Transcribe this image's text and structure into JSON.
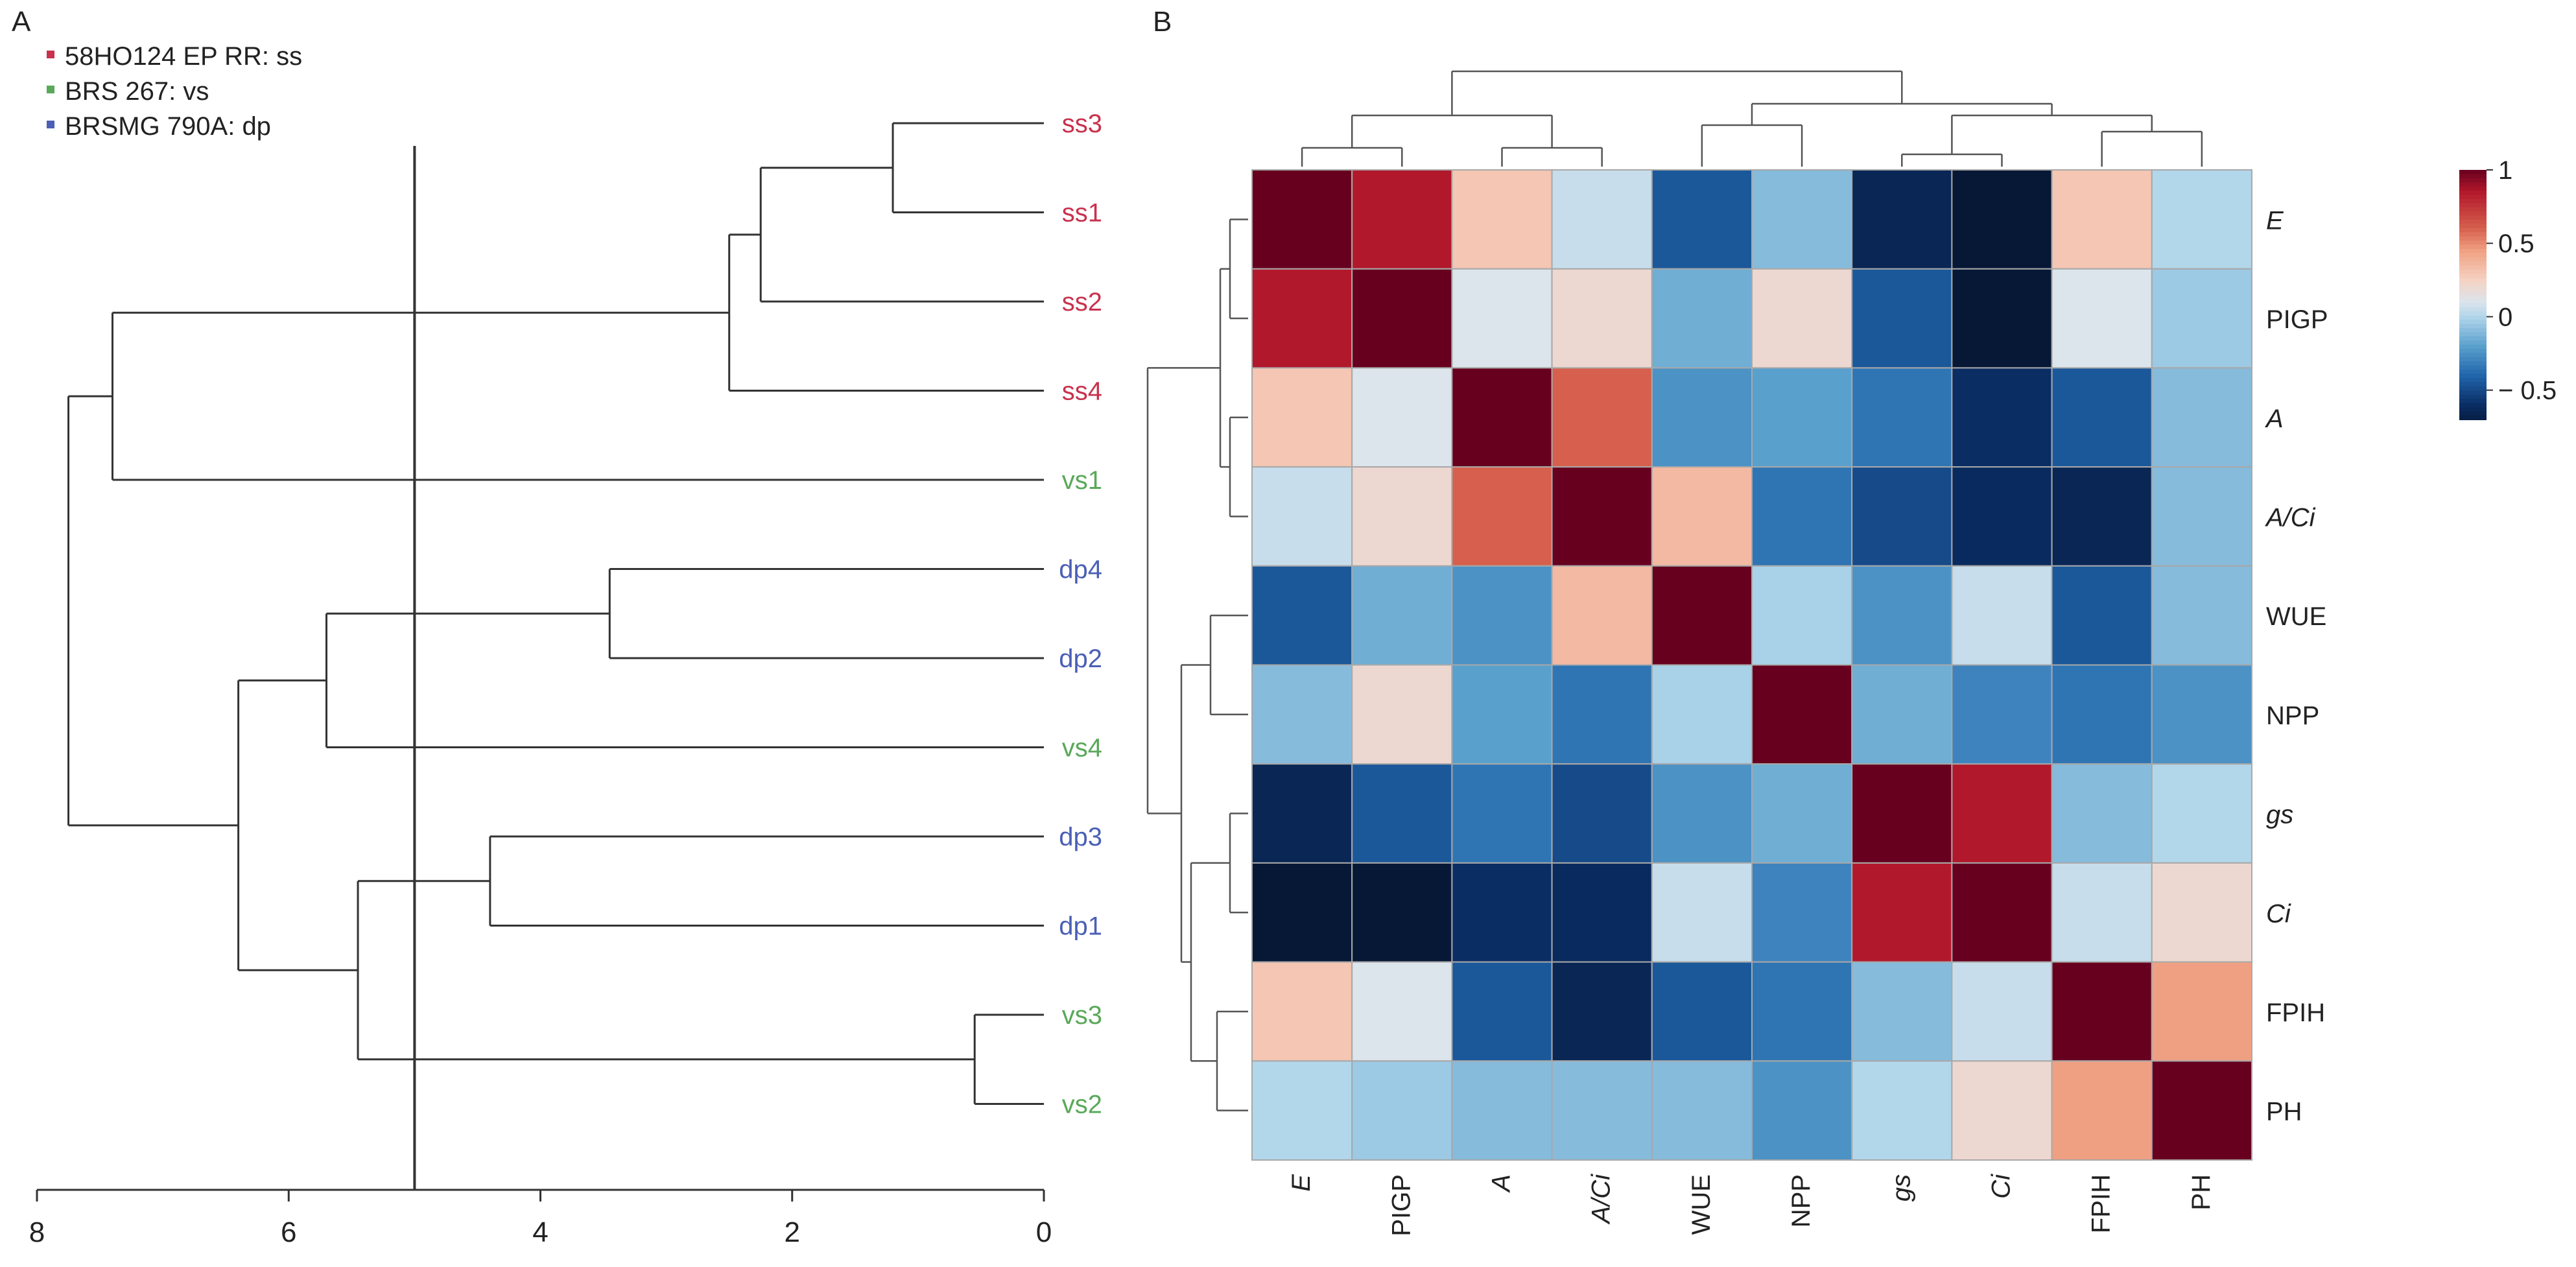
{
  "chart_data": [
    {
      "type": "dendrogram",
      "panel_label": "A",
      "orientation": "horizontal",
      "legend": [
        {
          "label": "58HO124 EP RR: ss",
          "color": "#c8324d"
        },
        {
          "label": "BRS 267: vs",
          "color": "#5aa85a"
        },
        {
          "label": "BRSMG 790A: dp",
          "color": "#4a5fb5"
        }
      ],
      "leaves": [
        {
          "label": "ss3",
          "group": "ss"
        },
        {
          "label": "ss1",
          "group": "ss"
        },
        {
          "label": "ss2",
          "group": "ss"
        },
        {
          "label": "ss4",
          "group": "ss"
        },
        {
          "label": "vs1",
          "group": "vs"
        },
        {
          "label": "dp4",
          "group": "dp"
        },
        {
          "label": "dp2",
          "group": "dp"
        },
        {
          "label": "vs4",
          "group": "vs"
        },
        {
          "label": "dp3",
          "group": "dp"
        },
        {
          "label": "dp1",
          "group": "dp"
        },
        {
          "label": "vs3",
          "group": "vs"
        },
        {
          "label": "vs2",
          "group": "vs"
        }
      ],
      "merges": [
        {
          "children": [
            "ss3",
            "ss1"
          ],
          "height": 1.2
        },
        {
          "children": [
            "(ss3,ss1)",
            "ss2"
          ],
          "height": 2.25
        },
        {
          "children": [
            "(ss3,ss1,ss2)",
            "ss4"
          ],
          "height": 2.5
        },
        {
          "children": [
            "(ss)",
            "vs1"
          ],
          "height": 7.4
        },
        {
          "children": [
            "dp4",
            "dp2"
          ],
          "height": 3.45
        },
        {
          "children": [
            "(dp4,dp2)",
            "vs4"
          ],
          "height": 5.7
        },
        {
          "children": [
            "dp3",
            "dp1"
          ],
          "height": 4.4
        },
        {
          "children": [
            "vs3",
            "vs2"
          ],
          "height": 0.55
        },
        {
          "children": [
            "(dp3,dp1)",
            "(vs3,vs2)"
          ],
          "height": 5.45
        },
        {
          "children": [
            "(dp4,dp2,vs4)",
            "(dp3,dp1,vs3,vs2)"
          ],
          "height": 6.4
        },
        {
          "children": [
            "(ss,vs1)",
            "(dp,vs)"
          ],
          "height": 7.75
        }
      ],
      "cut_height": 5.0,
      "x_axis": {
        "ticks": [
          "8",
          "6",
          "4",
          "2",
          "0"
        ],
        "range": [
          8,
          0
        ]
      }
    },
    {
      "type": "heatmap",
      "panel_label": "B",
      "columns": [
        "E",
        "PIGP",
        "A",
        "A/Ci",
        "WUE",
        "NPP",
        "gs",
        "Ci",
        "FPIH",
        "PH"
      ],
      "rows": [
        "E",
        "PIGP",
        "A",
        "A/Ci",
        "WUE",
        "NPP",
        "gs",
        "Ci",
        "FPIH",
        "PH"
      ],
      "italic_labels": [
        "E",
        "A",
        "A/Ci",
        "gs",
        "Ci"
      ],
      "values": [
        [
          1.0,
          0.85,
          0.3,
          0.05,
          -0.45,
          -0.1,
          -0.65,
          -0.8,
          0.3,
          0.0
        ],
        [
          0.85,
          1.0,
          0.1,
          0.2,
          -0.15,
          0.2,
          -0.45,
          -0.75,
          0.1,
          -0.05
        ],
        [
          0.3,
          0.1,
          1.0,
          0.6,
          -0.25,
          -0.2,
          -0.35,
          -0.6,
          -0.45,
          -0.1
        ],
        [
          0.05,
          0.2,
          0.6,
          1.0,
          0.35,
          -0.35,
          -0.5,
          -0.62,
          -0.65,
          -0.1
        ],
        [
          -0.45,
          -0.15,
          -0.25,
          0.35,
          1.0,
          -0.02,
          -0.25,
          0.05,
          -0.45,
          -0.1
        ],
        [
          -0.1,
          0.2,
          -0.2,
          -0.35,
          -0.02,
          1.0,
          -0.15,
          -0.3,
          -0.35,
          -0.25
        ],
        [
          -0.65,
          -0.45,
          -0.35,
          -0.5,
          -0.25,
          -0.15,
          1.0,
          0.85,
          -0.1,
          0.0
        ],
        [
          -0.8,
          -0.75,
          -0.6,
          -0.62,
          0.05,
          -0.3,
          0.85,
          1.0,
          0.05,
          0.2
        ],
        [
          0.3,
          0.1,
          -0.45,
          -0.65,
          -0.45,
          -0.35,
          -0.1,
          0.05,
          1.0,
          0.45
        ],
        [
          0.0,
          -0.05,
          -0.1,
          -0.1,
          -0.1,
          -0.25,
          0.0,
          0.2,
          0.45,
          1.0
        ]
      ],
      "colorbar": {
        "range": [
          -0.7,
          1.0
        ],
        "tick_labels": [
          "1",
          "0.5",
          "0",
          "− 0.5"
        ],
        "tick_values": [
          1.0,
          0.5,
          0.0,
          -0.5
        ]
      },
      "dendrograms": [
        "columns (top)",
        "rows (left)"
      ]
    }
  ]
}
